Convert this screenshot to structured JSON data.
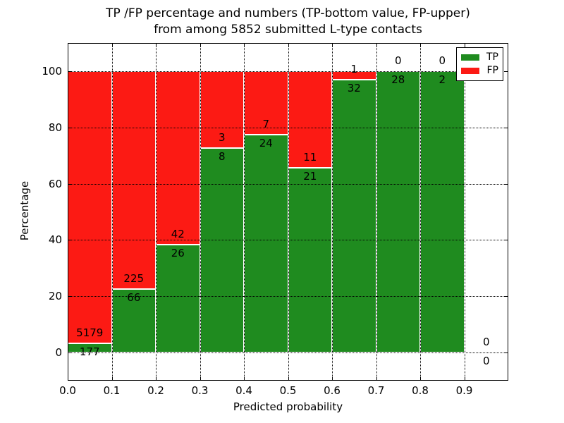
{
  "chart_data": {
    "type": "bar",
    "stacked": true,
    "title_line1": "TP /FP percentage and numbers (TP-bottom value, FP-upper)",
    "title_line2": "from among 5852 submitted L-type contacts",
    "xlabel": "Predicted probability",
    "ylabel": "Percentage",
    "xlim": [
      0.0,
      1.0
    ],
    "ylim": [
      -10,
      110
    ],
    "xticks": [
      "0.0",
      "0.1",
      "0.2",
      "0.3",
      "0.4",
      "0.5",
      "0.6",
      "0.7",
      "0.8",
      "0.9"
    ],
    "yticks": [
      "0",
      "20",
      "40",
      "60",
      "80",
      "100"
    ],
    "grid": true,
    "total_contacts": 5852,
    "colors": {
      "tp": "#1f8b1f",
      "fp": "#fc1a14"
    },
    "legend": {
      "position": "upper right",
      "entries": [
        {
          "label": "TP",
          "color": "#1f8b1f"
        },
        {
          "label": "FP",
          "color": "#fc1a14"
        }
      ]
    },
    "bins": [
      {
        "x0": 0.0,
        "x1": 0.1,
        "tp": 177,
        "fp": 5179,
        "tp_pct": 3.3,
        "fp_pct": 96.7
      },
      {
        "x0": 0.1,
        "x1": 0.2,
        "tp": 66,
        "fp": 225,
        "tp_pct": 22.68,
        "fp_pct": 77.32
      },
      {
        "x0": 0.2,
        "x1": 0.3,
        "tp": 26,
        "fp": 42,
        "tp_pct": 38.24,
        "fp_pct": 61.76
      },
      {
        "x0": 0.3,
        "x1": 0.4,
        "tp": 8,
        "fp": 3,
        "tp_pct": 72.73,
        "fp_pct": 27.27
      },
      {
        "x0": 0.4,
        "x1": 0.5,
        "tp": 24,
        "fp": 7,
        "tp_pct": 77.42,
        "fp_pct": 22.58
      },
      {
        "x0": 0.5,
        "x1": 0.6,
        "tp": 21,
        "fp": 11,
        "tp_pct": 65.63,
        "fp_pct": 34.37
      },
      {
        "x0": 0.6,
        "x1": 0.7,
        "tp": 32,
        "fp": 1,
        "tp_pct": 96.97,
        "fp_pct": 3.03
      },
      {
        "x0": 0.7,
        "x1": 0.8,
        "tp": 28,
        "fp": 0,
        "tp_pct": 100,
        "fp_pct": 0
      },
      {
        "x0": 0.8,
        "x1": 0.9,
        "tp": 2,
        "fp": 0,
        "tp_pct": 100,
        "fp_pct": 0
      },
      {
        "x0": 0.9,
        "x1": 1.0,
        "tp": 0,
        "fp": 0,
        "tp_pct": null,
        "fp_pct": null
      }
    ]
  }
}
